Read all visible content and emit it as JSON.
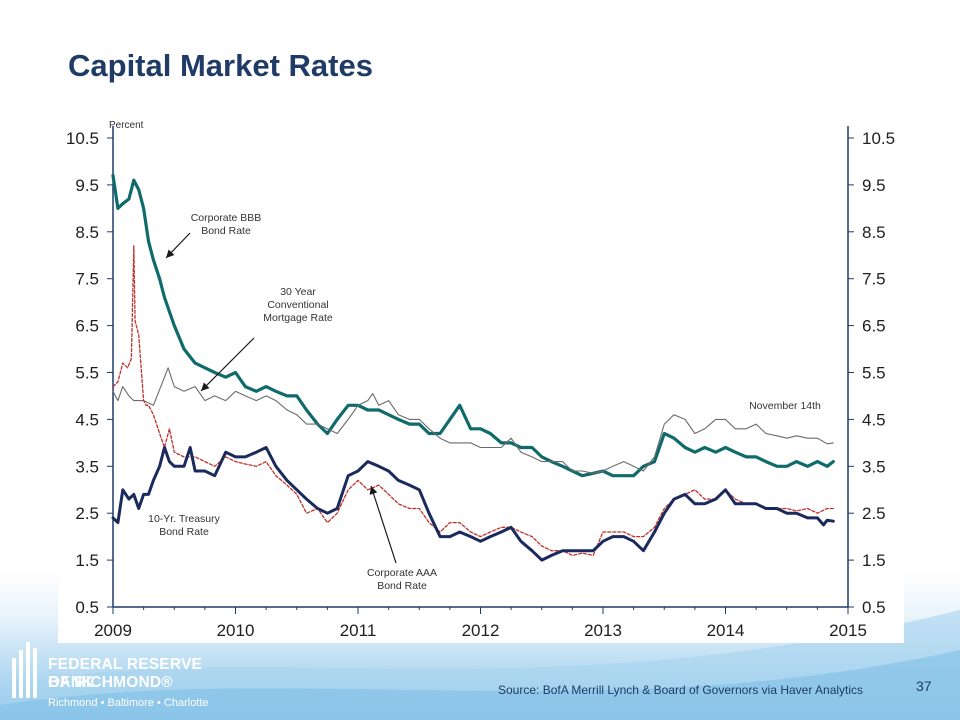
{
  "slide": {
    "title": "Capital Market Rates",
    "source": "Source: BofA Merrill Lynch & Board of Governors via Haver Analytics",
    "page_number": "37"
  },
  "branding": {
    "line1": "FEDERAL RESERVE BANK",
    "line2": "OF RICHMOND®",
    "line3": "Richmond • Baltimore • Charlotte"
  },
  "colors": {
    "title": "#1f3b66",
    "bbb": "#0f6b6b",
    "mortgage": "#6b6b6b",
    "aaa": "#c0302b",
    "treasury": "#1b2a5c"
  },
  "chart_data": {
    "type": "line",
    "ylabel": "Percent",
    "ylim": [
      0.5,
      10.5
    ],
    "yticks": [
      "10.5",
      "9.5",
      "8.5",
      "7.5",
      "6.5",
      "5.5",
      "4.5",
      "3.5",
      "2.5",
      "1.5",
      "0.5"
    ],
    "xlim": [
      2009,
      2015
    ],
    "xticks": [
      "2009",
      "2010",
      "2011",
      "2012",
      "2013",
      "2014",
      "2015"
    ],
    "grid": false,
    "annotations": {
      "bbb": [
        "Corporate BBB",
        "Bond Rate"
      ],
      "mortgage": [
        "30 Year",
        "Conventional",
        "Mortgage Rate"
      ],
      "treasury": [
        "10-Yr. Treasury",
        "Bond Rate"
      ],
      "aaa": [
        "Corporate AAA",
        "Bond Rate"
      ],
      "date": "November 14th"
    },
    "series": [
      {
        "key": "bbb",
        "x": [
          2009.0,
          2009.04,
          2009.08,
          2009.13,
          2009.17,
          2009.21,
          2009.25,
          2009.29,
          2009.33,
          2009.38,
          2009.42,
          2009.5,
          2009.58,
          2009.67,
          2009.75,
          2009.83,
          2009.92,
          2010.0,
          2010.08,
          2010.17,
          2010.25,
          2010.33,
          2010.42,
          2010.5,
          2010.58,
          2010.67,
          2010.75,
          2010.83,
          2010.92,
          2011.0,
          2011.08,
          2011.17,
          2011.25,
          2011.33,
          2011.42,
          2011.5,
          2011.58,
          2011.67,
          2011.75,
          2011.83,
          2011.92,
          2012.0,
          2012.08,
          2012.17,
          2012.25,
          2012.33,
          2012.42,
          2012.5,
          2012.58,
          2012.67,
          2012.75,
          2012.83,
          2012.92,
          2013.0,
          2013.08,
          2013.17,
          2013.25,
          2013.33,
          2013.42,
          2013.5,
          2013.58,
          2013.67,
          2013.75,
          2013.83,
          2013.92,
          2014.0,
          2014.08,
          2014.17,
          2014.25,
          2014.33,
          2014.42,
          2014.5,
          2014.58,
          2014.67,
          2014.75,
          2014.83,
          2014.88
        ],
        "y": [
          9.7,
          9.0,
          9.1,
          9.2,
          9.6,
          9.4,
          9.0,
          8.3,
          7.9,
          7.5,
          7.1,
          6.5,
          6.0,
          5.7,
          5.6,
          5.5,
          5.4,
          5.5,
          5.2,
          5.1,
          5.2,
          5.1,
          5.0,
          5.0,
          4.7,
          4.4,
          4.2,
          4.5,
          4.8,
          4.8,
          4.7,
          4.7,
          4.6,
          4.5,
          4.4,
          4.4,
          4.2,
          4.2,
          4.5,
          4.8,
          4.3,
          4.3,
          4.2,
          4.0,
          4.0,
          3.9,
          3.9,
          3.7,
          3.6,
          3.5,
          3.4,
          3.3,
          3.35,
          3.4,
          3.3,
          3.3,
          3.3,
          3.5,
          3.6,
          4.2,
          4.1,
          3.9,
          3.8,
          3.9,
          3.8,
          3.9,
          3.8,
          3.7,
          3.7,
          3.6,
          3.5,
          3.5,
          3.6,
          3.5,
          3.6,
          3.5,
          3.6
        ]
      },
      {
        "key": "mortgage",
        "x": [
          2009.0,
          2009.04,
          2009.08,
          2009.13,
          2009.17,
          2009.25,
          2009.33,
          2009.42,
          2009.45,
          2009.5,
          2009.58,
          2009.67,
          2009.75,
          2009.83,
          2009.92,
          2010.0,
          2010.08,
          2010.17,
          2010.25,
          2010.33,
          2010.42,
          2010.5,
          2010.58,
          2010.67,
          2010.75,
          2010.83,
          2010.92,
          2011.0,
          2011.08,
          2011.12,
          2011.17,
          2011.25,
          2011.33,
          2011.42,
          2011.5,
          2011.58,
          2011.67,
          2011.75,
          2011.83,
          2011.92,
          2012.0,
          2012.08,
          2012.17,
          2012.25,
          2012.33,
          2012.42,
          2012.5,
          2012.58,
          2012.67,
          2012.75,
          2012.83,
          2012.92,
          2013.0,
          2013.08,
          2013.17,
          2013.25,
          2013.33,
          2013.42,
          2013.5,
          2013.58,
          2013.67,
          2013.75,
          2013.83,
          2013.92,
          2014.0,
          2014.08,
          2014.17,
          2014.25,
          2014.33,
          2014.42,
          2014.5,
          2014.58,
          2014.67,
          2014.75,
          2014.83,
          2014.88
        ],
        "y": [
          5.1,
          4.9,
          5.2,
          5.0,
          4.9,
          4.9,
          4.8,
          5.4,
          5.6,
          5.2,
          5.1,
          5.2,
          4.9,
          5.0,
          4.9,
          5.1,
          5.0,
          4.9,
          5.0,
          4.9,
          4.7,
          4.6,
          4.4,
          4.4,
          4.3,
          4.2,
          4.5,
          4.8,
          4.9,
          5.05,
          4.8,
          4.9,
          4.6,
          4.5,
          4.5,
          4.3,
          4.1,
          4.0,
          4.0,
          4.0,
          3.9,
          3.9,
          3.9,
          4.1,
          3.8,
          3.7,
          3.6,
          3.6,
          3.6,
          3.4,
          3.4,
          3.35,
          3.4,
          3.5,
          3.6,
          3.5,
          3.4,
          3.7,
          4.4,
          4.6,
          4.5,
          4.2,
          4.3,
          4.5,
          4.5,
          4.3,
          4.3,
          4.4,
          4.2,
          4.15,
          4.1,
          4.15,
          4.1,
          4.1,
          3.98,
          4.0
        ]
      },
      {
        "key": "aaa",
        "x": [
          2009.0,
          2009.04,
          2009.08,
          2009.12,
          2009.15,
          2009.17,
          2009.18,
          2009.21,
          2009.25,
          2009.27,
          2009.29,
          2009.33,
          2009.38,
          2009.42,
          2009.46,
          2009.5,
          2009.58,
          2009.67,
          2009.75,
          2009.83,
          2009.92,
          2010.0,
          2010.08,
          2010.17,
          2010.25,
          2010.33,
          2010.42,
          2010.5,
          2010.58,
          2010.67,
          2010.75,
          2010.83,
          2010.92,
          2011.0,
          2011.08,
          2011.17,
          2011.25,
          2011.33,
          2011.42,
          2011.5,
          2011.58,
          2011.67,
          2011.75,
          2011.83,
          2011.92,
          2012.0,
          2012.08,
          2012.17,
          2012.25,
          2012.33,
          2012.42,
          2012.5,
          2012.58,
          2012.67,
          2012.75,
          2012.83,
          2012.92,
          2013.0,
          2013.08,
          2013.17,
          2013.25,
          2013.33,
          2013.42,
          2013.5,
          2013.58,
          2013.67,
          2013.75,
          2013.83,
          2013.92,
          2014.0,
          2014.08,
          2014.17,
          2014.25,
          2014.33,
          2014.42,
          2014.5,
          2014.58,
          2014.67,
          2014.75,
          2014.83,
          2014.88
        ],
        "y": [
          5.2,
          5.3,
          5.7,
          5.6,
          5.8,
          8.2,
          6.6,
          6.3,
          4.9,
          4.8,
          4.8,
          4.6,
          4.2,
          3.9,
          4.3,
          3.8,
          3.7,
          3.7,
          3.6,
          3.5,
          3.7,
          3.6,
          3.55,
          3.5,
          3.6,
          3.3,
          3.1,
          2.9,
          2.5,
          2.6,
          2.3,
          2.5,
          3.0,
          3.2,
          3.0,
          3.1,
          2.9,
          2.7,
          2.6,
          2.6,
          2.3,
          2.1,
          2.3,
          2.3,
          2.1,
          2.0,
          2.1,
          2.2,
          2.2,
          2.1,
          2.0,
          1.8,
          1.7,
          1.7,
          1.6,
          1.65,
          1.6,
          2.1,
          2.1,
          2.1,
          2.0,
          2.0,
          2.2,
          2.6,
          2.8,
          2.9,
          3.0,
          2.8,
          2.8,
          3.0,
          2.8,
          2.7,
          2.7,
          2.6,
          2.6,
          2.6,
          2.55,
          2.6,
          2.5,
          2.6,
          2.6
        ]
      },
      {
        "key": "treasury",
        "x": [
          2009.0,
          2009.04,
          2009.08,
          2009.13,
          2009.17,
          2009.21,
          2009.25,
          2009.29,
          2009.33,
          2009.38,
          2009.42,
          2009.46,
          2009.5,
          2009.58,
          2009.63,
          2009.67,
          2009.75,
          2009.83,
          2009.92,
          2010.0,
          2010.08,
          2010.17,
          2010.25,
          2010.33,
          2010.42,
          2010.5,
          2010.58,
          2010.67,
          2010.75,
          2010.83,
          2010.92,
          2011.0,
          2011.08,
          2011.17,
          2011.25,
          2011.33,
          2011.42,
          2011.5,
          2011.58,
          2011.67,
          2011.75,
          2011.83,
          2011.92,
          2012.0,
          2012.08,
          2012.17,
          2012.25,
          2012.33,
          2012.42,
          2012.5,
          2012.58,
          2012.67,
          2012.75,
          2012.83,
          2012.92,
          2013.0,
          2013.08,
          2013.17,
          2013.25,
          2013.33,
          2013.42,
          2013.5,
          2013.58,
          2013.67,
          2013.75,
          2013.83,
          2013.92,
          2014.0,
          2014.08,
          2014.17,
          2014.25,
          2014.33,
          2014.42,
          2014.5,
          2014.58,
          2014.67,
          2014.75,
          2014.8,
          2014.83,
          2014.88
        ],
        "y": [
          2.4,
          2.3,
          3.0,
          2.8,
          2.9,
          2.6,
          2.9,
          2.9,
          3.2,
          3.5,
          3.9,
          3.6,
          3.5,
          3.5,
          3.9,
          3.4,
          3.4,
          3.3,
          3.8,
          3.7,
          3.7,
          3.8,
          3.9,
          3.5,
          3.2,
          3.0,
          2.8,
          2.6,
          2.5,
          2.6,
          3.3,
          3.4,
          3.6,
          3.5,
          3.4,
          3.2,
          3.1,
          3.0,
          2.5,
          2.0,
          2.0,
          2.1,
          2.0,
          1.9,
          2.0,
          2.1,
          2.2,
          1.9,
          1.7,
          1.5,
          1.6,
          1.7,
          1.7,
          1.7,
          1.7,
          1.9,
          2.0,
          2.0,
          1.9,
          1.7,
          2.1,
          2.5,
          2.8,
          2.9,
          2.7,
          2.7,
          2.8,
          3.0,
          2.7,
          2.7,
          2.7,
          2.6,
          2.6,
          2.5,
          2.5,
          2.4,
          2.4,
          2.25,
          2.35,
          2.33
        ]
      }
    ]
  }
}
